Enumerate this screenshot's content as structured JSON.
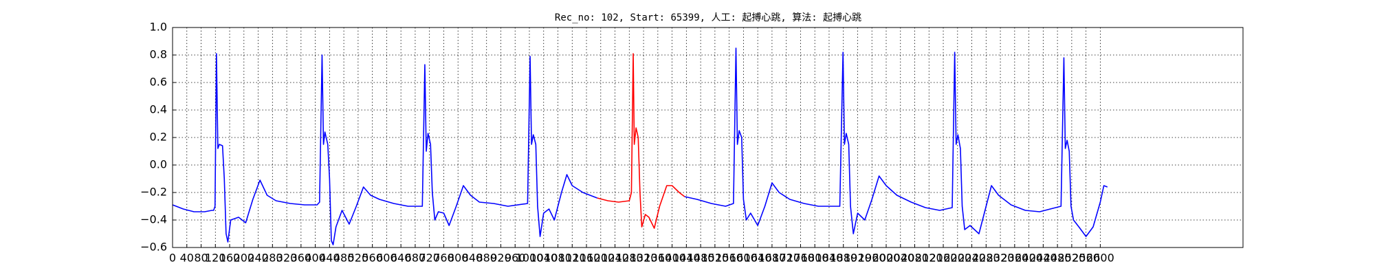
{
  "chart_data": {
    "type": "line",
    "title": "Rec_no: 102, Start: 65399, 人工: 起搏心跳, 算法: 起搏心跳",
    "x": [
      0,
      30,
      60,
      90,
      110,
      115,
      119,
      123,
      127,
      131,
      140,
      145,
      150,
      155,
      163,
      185,
      205,
      225,
      245,
      265,
      290,
      330,
      370,
      405,
      412,
      419,
      423,
      427,
      435,
      440,
      445,
      450,
      458,
      475,
      495,
      515,
      535,
      555,
      580,
      620,
      660,
      700,
      707,
      711,
      716,
      723,
      728,
      735,
      745,
      760,
      775,
      795,
      815,
      835,
      860,
      900,
      940,
      995,
      1002,
      1006,
      1011,
      1018,
      1023,
      1030,
      1040,
      1055,
      1070,
      1090,
      1105,
      1120,
      1150,
      1180,
      1190,
      1220,
      1250,
      1280,
      1286,
      1291,
      1294,
      1299,
      1305,
      1310,
      1315,
      1325,
      1335,
      1350,
      1365,
      1385,
      1400,
      1420,
      1435,
      1470,
      1510,
      1550,
      1572,
      1579,
      1583,
      1588,
      1595,
      1600,
      1608,
      1620,
      1640,
      1660,
      1680,
      1700,
      1730,
      1770,
      1810,
      1870,
      1879,
      1883,
      1888,
      1895,
      1900,
      1908,
      1920,
      1940,
      1960,
      1980,
      2000,
      2030,
      2070,
      2110,
      2150,
      2185,
      2192,
      2196,
      2201,
      2208,
      2213,
      2220,
      2235,
      2260,
      2275,
      2295,
      2315,
      2350,
      2390,
      2430,
      2490,
      2498,
      2502,
      2507,
      2513,
      2518,
      2525,
      2540,
      2560,
      2580,
      2600,
      2610,
      2620
    ],
    "series": [
      {
        "color": "#0000ff",
        "values": [
          -0.29,
          -0.32,
          -0.34,
          -0.34,
          -0.33,
          -0.33,
          -0.3,
          0.81,
          0.12,
          0.15,
          0.14,
          -0.1,
          -0.5,
          -0.56,
          -0.4,
          -0.38,
          -0.42,
          -0.25,
          -0.11,
          -0.22,
          -0.26,
          -0.28,
          -0.29,
          -0.29,
          -0.27,
          0.8,
          0.15,
          0.24,
          0.15,
          -0.1,
          -0.55,
          -0.58,
          -0.45,
          -0.33,
          -0.43,
          -0.3,
          -0.16,
          -0.22,
          -0.25,
          -0.28,
          -0.3,
          -0.3,
          0.73,
          0.1,
          0.23,
          0.15,
          -0.2,
          -0.4,
          -0.34,
          -0.35,
          -0.44,
          -0.3,
          -0.15,
          -0.22,
          -0.27,
          -0.28,
          -0.3,
          -0.28,
          0.79,
          0.15,
          0.22,
          0.15,
          -0.3,
          -0.52,
          -0.35,
          -0.32,
          -0.4,
          -0.2,
          -0.07,
          -0.15,
          -0.2,
          -0.23,
          -0.24,
          null,
          null,
          null,
          null,
          null,
          null,
          null,
          null,
          null,
          null,
          null,
          null,
          null,
          null,
          null,
          null,
          null,
          -0.23,
          -0.25,
          -0.28,
          -0.3,
          -0.28,
          0.85,
          0.15,
          0.25,
          0.2,
          -0.25,
          -0.4,
          -0.35,
          -0.44,
          -0.3,
          -0.13,
          -0.2,
          -0.25,
          -0.28,
          -0.3,
          -0.3,
          0.82,
          0.15,
          0.23,
          0.15,
          -0.3,
          -0.5,
          -0.35,
          -0.4,
          -0.25,
          -0.08,
          -0.15,
          -0.22,
          -0.27,
          -0.31,
          -0.33,
          -0.31,
          0.82,
          0.15,
          0.22,
          0.12,
          -0.3,
          -0.47,
          -0.44,
          -0.5,
          -0.35,
          -0.15,
          -0.22,
          -0.29,
          -0.33,
          -0.34,
          -0.3,
          0.78,
          0.12,
          0.18,
          0.1,
          -0.3,
          -0.4,
          -0.45,
          -0.52,
          -0.45,
          -0.27,
          -0.15,
          -0.16
        ]
      },
      {
        "color": "#ff0000",
        "values": [
          null,
          null,
          null,
          null,
          null,
          null,
          null,
          null,
          null,
          null,
          null,
          null,
          null,
          null,
          null,
          null,
          null,
          null,
          null,
          null,
          null,
          null,
          null,
          null,
          null,
          null,
          null,
          null,
          null,
          null,
          null,
          null,
          null,
          null,
          null,
          null,
          null,
          null,
          null,
          null,
          null,
          null,
          null,
          null,
          null,
          null,
          null,
          null,
          null,
          null,
          null,
          null,
          null,
          null,
          null,
          null,
          null,
          null,
          null,
          null,
          null,
          null,
          null,
          null,
          null,
          null,
          null,
          null,
          null,
          null,
          null,
          null,
          -0.24,
          -0.26,
          -0.27,
          -0.26,
          -0.2,
          0.81,
          0.15,
          0.27,
          0.2,
          -0.2,
          -0.45,
          -0.36,
          -0.38,
          -0.46,
          -0.3,
          -0.15,
          -0.15,
          -0.2,
          -0.23,
          null,
          null,
          null,
          null,
          null,
          null,
          null,
          null,
          null,
          null,
          null,
          null,
          null,
          null,
          null,
          null,
          null,
          null,
          null,
          null,
          null,
          null,
          null,
          null,
          null,
          null,
          null,
          null,
          null,
          null,
          null,
          null,
          null,
          null,
          null,
          null,
          null,
          null,
          null,
          null,
          null,
          null,
          null,
          null,
          null,
          null,
          null,
          null,
          null,
          null,
          null,
          null,
          null,
          null,
          null,
          null,
          null,
          null,
          null,
          null,
          null,
          null
        ]
      }
    ],
    "xlim": [
      0,
      3000
    ],
    "xticks": [
      0,
      40,
      80,
      120,
      160,
      200,
      240,
      280,
      320,
      360,
      400,
      440,
      480,
      520,
      560,
      600,
      640,
      680,
      720,
      760,
      800,
      840,
      880,
      920,
      960,
      1000,
      1040,
      1080,
      1120,
      1160,
      1200,
      1240,
      1280,
      1320,
      1360,
      1400,
      1440,
      1480,
      1520,
      1560,
      1600,
      1640,
      1680,
      1720,
      1760,
      1800,
      1840,
      1880,
      1920,
      1960,
      2000,
      2040,
      2080,
      2120,
      2160,
      2200,
      2240,
      2280,
      2320,
      2360,
      2400,
      2440,
      2480,
      2520,
      2560,
      2600
    ],
    "ylim": [
      -0.6,
      1.0
    ],
    "yticks": [
      {
        "value": -0.6,
        "label": "−0.6"
      },
      {
        "value": -0.4,
        "label": "−0.4"
      },
      {
        "value": -0.2,
        "label": "−0.2"
      },
      {
        "value": 0,
        "label": "0.0"
      },
      0.2,
      0.4,
      0.6,
      0.8,
      {
        "value": 1,
        "label": "1.0"
      }
    ],
    "grid": true
  }
}
